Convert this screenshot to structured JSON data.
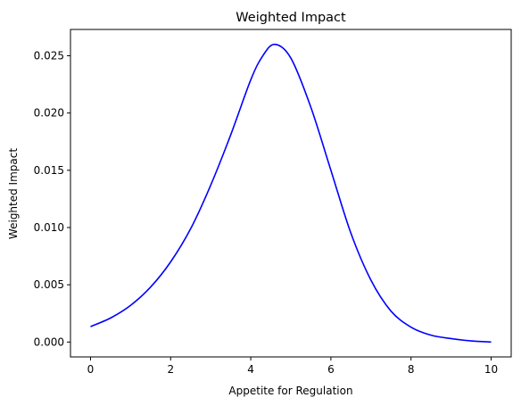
{
  "chart_data": {
    "type": "line",
    "title": "Weighted Impact",
    "xlabel": "Appetite for Regulation",
    "ylabel": "Weighted Impact",
    "xlim": [
      -0.5,
      10.5
    ],
    "ylim": [
      -0.0013,
      0.0273
    ],
    "x_ticks": [
      0,
      2,
      4,
      6,
      8,
      10
    ],
    "x_tick_labels": [
      "0",
      "2",
      "4",
      "6",
      "8",
      "10"
    ],
    "y_ticks": [
      0.0,
      0.005,
      0.01,
      0.015,
      0.02,
      0.025
    ],
    "y_tick_labels": [
      "0.000",
      "0.005",
      "0.010",
      "0.015",
      "0.020",
      "0.025"
    ],
    "grid": false,
    "legend": "none",
    "line_color": "#0000ff",
    "series": [
      {
        "x": [
          0,
          0.5,
          1,
          1.5,
          2,
          2.5,
          3,
          3.5,
          4,
          4.3,
          4.6,
          5,
          5.5,
          6,
          6.5,
          7,
          7.5,
          8,
          8.5,
          9,
          9.5,
          10
        ],
        "values": [
          0.00135,
          0.0021,
          0.0032,
          0.0048,
          0.007,
          0.0099,
          0.0137,
          0.0181,
          0.0229,
          0.025,
          0.026,
          0.0248,
          0.0205,
          0.015,
          0.0095,
          0.0054,
          0.0027,
          0.0013,
          0.0006,
          0.0003,
          0.0001,
          0.0
        ]
      }
    ]
  }
}
